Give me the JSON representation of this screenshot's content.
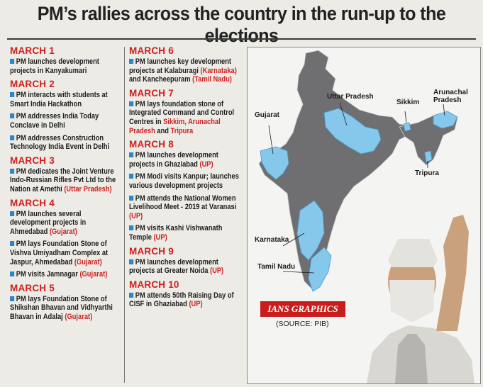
{
  "title": "PM’s rallies across the country in the run-up to the elections",
  "column1": [
    {
      "month": "MARCH 1",
      "items": [
        {
          "parts": [
            {
              "t": "PM launches development projects in Kanyakumari"
            }
          ]
        }
      ]
    },
    {
      "month": "MARCH 2",
      "items": [
        {
          "parts": [
            {
              "t": "PM interacts with students at Smart India Hackathon"
            }
          ]
        },
        {
          "parts": [
            {
              "t": "PM addresses India Today Conclave in Delhi"
            }
          ]
        },
        {
          "parts": [
            {
              "t": "PM addresses Construction Technology India Event in Delhi"
            }
          ]
        }
      ]
    },
    {
      "month": "MARCH 3",
      "items": [
        {
          "parts": [
            {
              "t": "PM dedicates the Joint Venture Indo-Russian Rifles Pvt Ltd to the Nation at Amethi "
            },
            {
              "t": "(Uttar Pradesh)",
              "hl": true
            }
          ]
        }
      ]
    },
    {
      "month": "MARCH 4",
      "items": [
        {
          "parts": [
            {
              "t": "PM launches several development projects in Ahmedabad "
            },
            {
              "t": "(Gujarat)",
              "hl": true
            }
          ]
        },
        {
          "parts": [
            {
              "t": "PM lays Foundation Stone of Vishva Umiyadham Complex at Jaspur, Ahmedabad "
            },
            {
              "t": "(Gujarat)",
              "hl": true
            }
          ]
        },
        {
          "parts": [
            {
              "t": "PM visits Jamnagar "
            },
            {
              "t": "(Gujarat)",
              "hl": true
            }
          ]
        }
      ]
    },
    {
      "month": "MARCH 5",
      "items": [
        {
          "parts": [
            {
              "t": "PM lays Foundation Stone of Shikshan Bhavan and Vidhyarthi Bhavan in Adalaj "
            },
            {
              "t": "(Gujarat)",
              "hl": true
            }
          ]
        }
      ]
    }
  ],
  "column2": [
    {
      "month": "MARCH 6",
      "items": [
        {
          "parts": [
            {
              "t": "PM launches key development projects at Kalaburagi "
            },
            {
              "t": "(Karnataka)",
              "hl": true
            },
            {
              "t": " and Kancheepuram "
            },
            {
              "t": "(Tamil Nadu)",
              "hl": true
            }
          ]
        }
      ]
    },
    {
      "month": "MARCH 7",
      "items": [
        {
          "parts": [
            {
              "t": "PM lays foundation stone of Integrated Command and Control Centres in "
            },
            {
              "t": "Sikkim, Arunachal Pradesh",
              "hl": true
            },
            {
              "t": " and "
            },
            {
              "t": "Tripura",
              "hl": true
            }
          ]
        }
      ]
    },
    {
      "month": "MARCH 8",
      "items": [
        {
          "parts": [
            {
              "t": "PM launches development projects in Ghaziabad "
            },
            {
              "t": "(UP)",
              "hl": true
            }
          ]
        },
        {
          "parts": [
            {
              "t": "PM Modi visits Kanpur; launches various development projects"
            }
          ]
        },
        {
          "parts": [
            {
              "t": "PM attends the National Women Livelihood Meet - 2019 at Varanasi "
            },
            {
              "t": "(UP)",
              "hl": true
            }
          ]
        },
        {
          "parts": [
            {
              "t": "PM visits Kashi Vishwanath Temple "
            },
            {
              "t": "(UP)",
              "hl": true
            }
          ]
        }
      ]
    },
    {
      "month": "MARCH 9",
      "items": [
        {
          "parts": [
            {
              "t": "PM launches development projects at Greater Noida "
            },
            {
              "t": "(UP)",
              "hl": true
            }
          ]
        }
      ]
    },
    {
      "month": "MARCH 10",
      "items": [
        {
          "parts": [
            {
              "t": "PM attends 50th Raising Day of CISF in Ghaziabad "
            },
            {
              "t": "(UP)",
              "hl": true
            }
          ]
        }
      ]
    }
  ],
  "map": {
    "labels": {
      "gujarat": "Gujarat",
      "uttar_pradesh": "Uttar Pradesh",
      "sikkim": "Sikkim",
      "arunachal": "Arunachal Pradesh",
      "tripura": "Tripura",
      "karnataka": "Karnataka",
      "tamil_nadu": "Tamil Nadu"
    },
    "credit": "IANS GRAPHICS",
    "source": "(SOURCE: PIB)",
    "colors": {
      "base": "#6f6f72",
      "highlight": "#86c7ec",
      "accent": "#c81d1b"
    }
  }
}
